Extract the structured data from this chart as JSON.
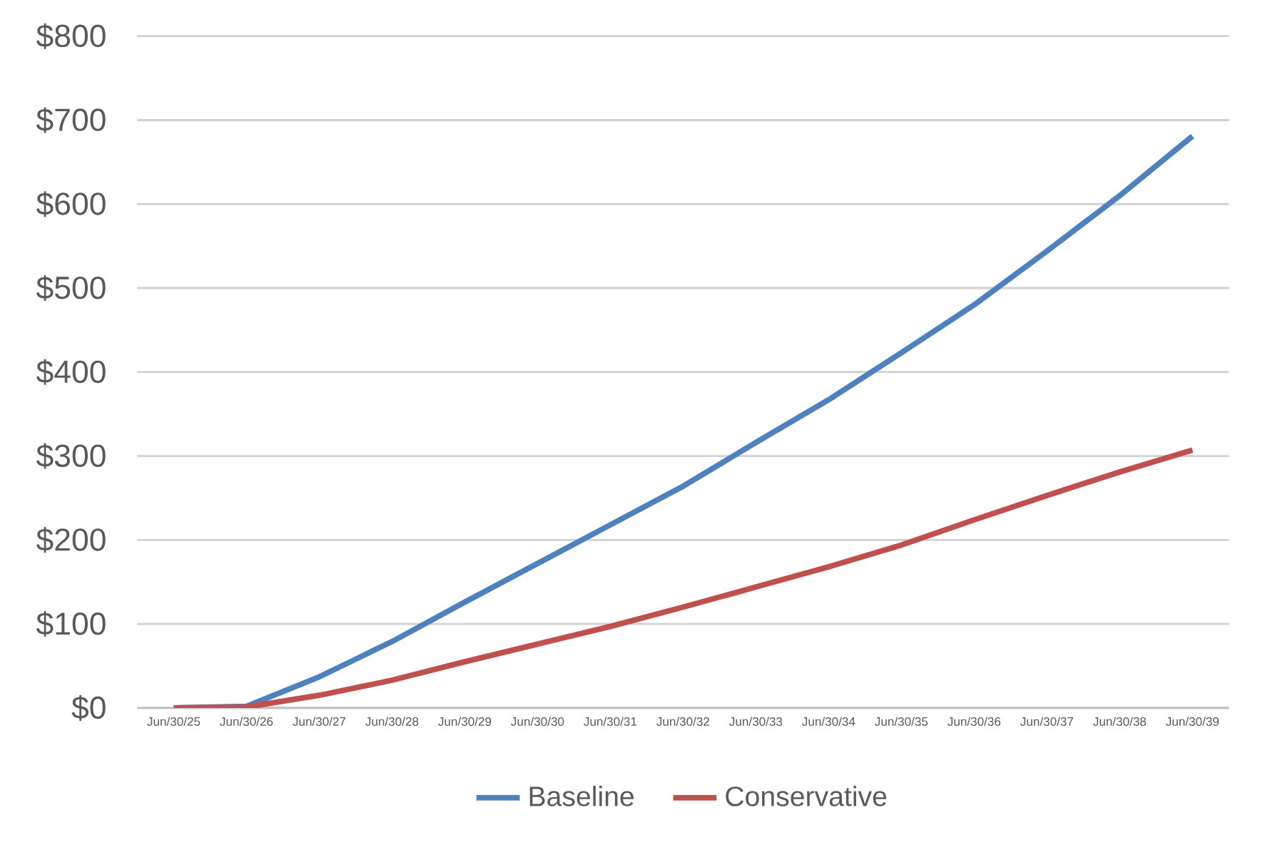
{
  "chart_data": {
    "type": "line",
    "categories": [
      "Jun/30/25",
      "Jun/30/26",
      "Jun/30/27",
      "Jun/30/28",
      "Jun/30/29",
      "Jun/30/30",
      "Jun/30/31",
      "Jun/30/32",
      "Jun/30/33",
      "Jun/30/34",
      "Jun/30/35",
      "Jun/30/36",
      "Jun/30/37",
      "Jun/30/38",
      "Jun/30/39"
    ],
    "series": [
      {
        "name": "Baseline",
        "color": "#4f81bd",
        "values": [
          0,
          2,
          37,
          79,
          126,
          172,
          218,
          264,
          316,
          367,
          423,
          480,
          544,
          610,
          681
        ]
      },
      {
        "name": "Conservative",
        "color": "#c0504d",
        "values": [
          0,
          1,
          15,
          33,
          55,
          76,
          97,
          120,
          144,
          168,
          194,
          224,
          253,
          281,
          307
        ]
      }
    ],
    "ylim": [
      0,
      800
    ],
    "yticks": [
      {
        "value": 0,
        "label": "$0"
      },
      {
        "value": 100,
        "label": "$100"
      },
      {
        "value": 200,
        "label": "$200"
      },
      {
        "value": 300,
        "label": "$300"
      },
      {
        "value": 400,
        "label": "$400"
      },
      {
        "value": 500,
        "label": "$500"
      },
      {
        "value": 600,
        "label": "$600"
      },
      {
        "value": 700,
        "label": "$700"
      },
      {
        "value": 800,
        "label": "$800"
      }
    ],
    "grid": "y",
    "legend": "bottom",
    "marker": "none",
    "line_style": "solid"
  }
}
